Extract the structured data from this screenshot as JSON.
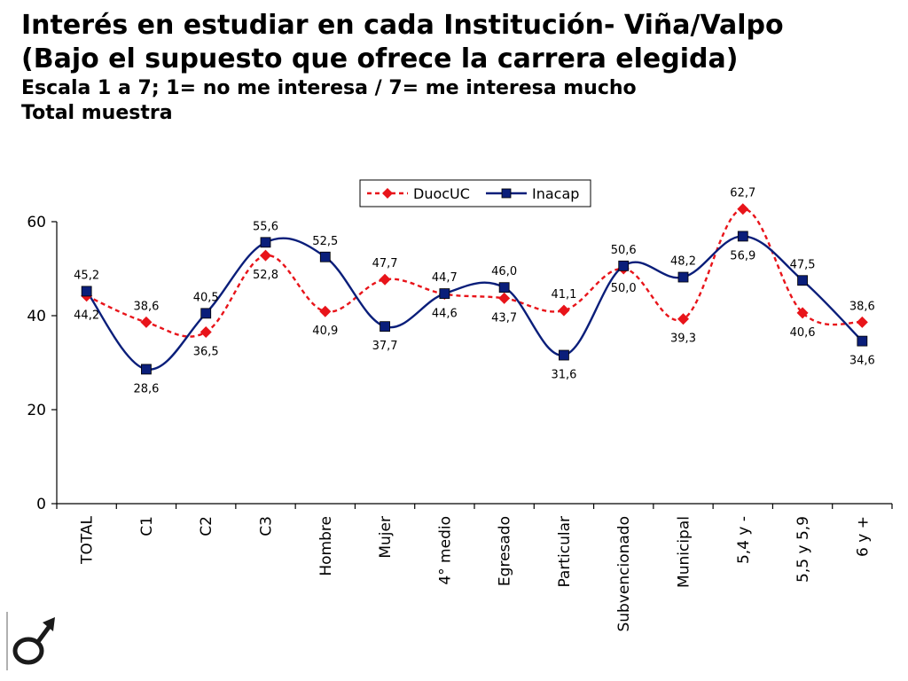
{
  "header": {
    "line1": "Interés en estudiar en cada Institución- Viña/Valpo",
    "line2": "(Bajo el supuesto que ofrece la carrera  elegida)",
    "line3": "Escala 1 a 7; 1= no me interesa / 7= me interesa mucho",
    "line4": "Total muestra"
  },
  "chart_data": {
    "type": "line",
    "categories": [
      "TOTAL",
      "C1",
      "C2",
      "C3",
      "Hombre",
      "Mujer",
      "4° medio",
      "Egresado",
      "Particular",
      "Subvencionado",
      "Municipal",
      "5,4 y -",
      "5,5 y 5,9",
      "6 y +"
    ],
    "series": [
      {
        "name": "DuocUC",
        "color": "#e8141a",
        "marker": "diamond",
        "style": "dashed-smooth",
        "values": [
          44.2,
          38.6,
          36.5,
          52.8,
          40.9,
          47.7,
          44.6,
          43.7,
          41.1,
          50.0,
          39.3,
          62.7,
          40.6,
          38.6
        ],
        "labels": [
          "44,2",
          "38,6",
          "36,5",
          "52,8",
          "40,9",
          "47,7",
          "44,6",
          "43,7",
          "41,1",
          "50,0",
          "39,3",
          "62,7",
          "40,6",
          "38,6"
        ]
      },
      {
        "name": "Inacap",
        "color": "#0a1e7a",
        "marker": "square",
        "style": "solid-smooth",
        "values": [
          45.2,
          28.6,
          40.5,
          55.6,
          52.5,
          37.7,
          44.7,
          46.0,
          31.6,
          50.6,
          48.2,
          56.9,
          47.5,
          34.6
        ],
        "labels": [
          "45,2",
          "28,6",
          "40,5",
          "55,6",
          "52,5",
          "37,7",
          "44,7",
          "46,0",
          "31,6",
          "50,6",
          "48,2",
          "56,9",
          "47,5",
          "34,6"
        ]
      }
    ],
    "yticks": [
      "0",
      "20",
      "40",
      "60"
    ],
    "ylim": [
      0,
      60
    ],
    "legend_position": "top-right",
    "grid": false
  }
}
